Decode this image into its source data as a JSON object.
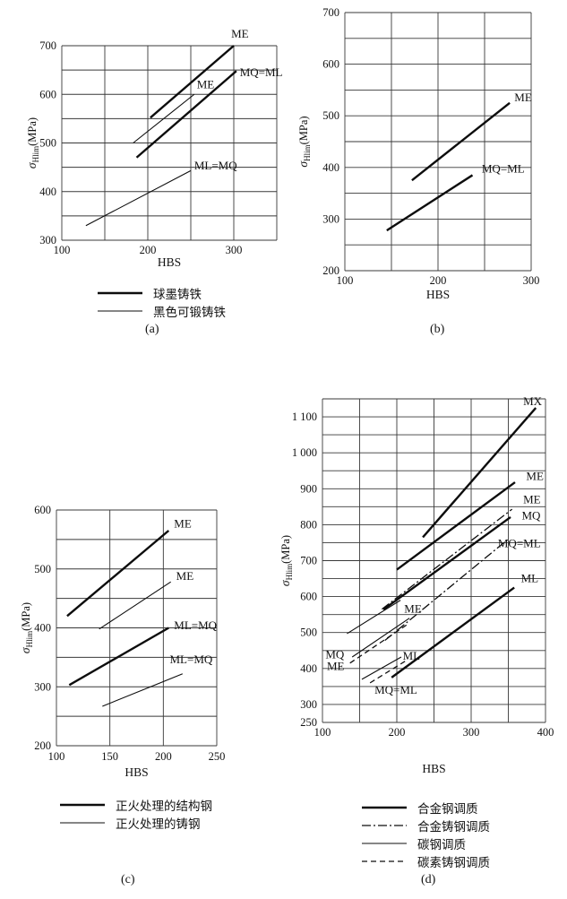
{
  "axis": {
    "x_title": "HBS",
    "y_title": {
      "sym": "σ",
      "sub": "Hlim",
      "unit": "(MPa)"
    }
  },
  "quality_grades": [
    "ME",
    "MQ",
    "ML",
    "MX"
  ],
  "line_color": "#0d0d0d",
  "chart_data": [
    {
      "id": "a",
      "type": "line",
      "caption": "(a)",
      "xlabel": "HBS",
      "ylabel": "σHlim(MPa)",
      "xlim": [
        100,
        350
      ],
      "ylim": [
        300,
        700
      ],
      "grid_step": 50,
      "grid": true,
      "xticks": [
        100,
        200,
        300
      ],
      "yticks": [
        {
          "v": 700,
          "l": "700"
        },
        {
          "v": 600,
          "l": "600"
        },
        {
          "v": 500,
          "l": "500"
        },
        {
          "v": 400,
          "l": "400"
        },
        {
          "v": 300,
          "l": "300"
        }
      ],
      "series": [
        {
          "name": "ME",
          "material": "球墨铸铁",
          "style": "thick",
          "points": [
            [
              203,
              552
            ],
            [
              300,
              700
            ]
          ],
          "label": {
            "t": "ME",
            "x": 297,
            "y": 717
          }
        },
        {
          "name": "MQ=ML",
          "material": "球墨铸铁",
          "style": "thick",
          "points": [
            [
              187,
              470
            ],
            [
              303,
              648
            ]
          ],
          "label": {
            "t": "MQ=ML",
            "x": 307,
            "y": 637
          }
        },
        {
          "name": "ME",
          "material": "黑色可锻铸铁",
          "style": "thin",
          "points": [
            [
              183,
              500
            ],
            [
              254,
              600
            ]
          ],
          "label": {
            "t": "ME",
            "x": 257,
            "y": 612
          }
        },
        {
          "name": "ML=MQ",
          "material": "黑色可锻铸铁",
          "style": "thin",
          "points": [
            [
              128,
              330
            ],
            [
              250,
              443
            ]
          ],
          "label": {
            "t": "ML=MQ",
            "x": 254,
            "y": 446
          }
        }
      ],
      "legend": [
        {
          "style": "thick",
          "label": "球墨铸铁"
        },
        {
          "style": "thin",
          "label": "黑色可锻铸铁"
        }
      ]
    },
    {
      "id": "b",
      "type": "line",
      "caption": "(b)",
      "xlabel": "HBS",
      "ylabel": "σHlim(MPa)",
      "xlim": [
        100,
        300
      ],
      "ylim": [
        200,
        700
      ],
      "grid_step": 50,
      "grid": true,
      "xticks": [
        100,
        200,
        300
      ],
      "yticks": [
        {
          "v": 700,
          "l": "700"
        },
        {
          "v": 600,
          "l": "600"
        },
        {
          "v": 500,
          "l": "500"
        },
        {
          "v": 400,
          "l": "400"
        },
        {
          "v": 300,
          "l": "300"
        },
        {
          "v": 200,
          "l": "200"
        }
      ],
      "series": [
        {
          "name": "ME",
          "style": "thick",
          "points": [
            [
              172,
              375
            ],
            [
              277,
              525
            ]
          ],
          "label": {
            "t": "ME",
            "x": 282,
            "y": 528
          }
        },
        {
          "name": "MQ=ML",
          "style": "thick",
          "points": [
            [
              145,
              278
            ],
            [
              237,
              385
            ]
          ],
          "label": {
            "t": "MQ=ML",
            "x": 247,
            "y": 390
          }
        }
      ],
      "legend": []
    },
    {
      "id": "c",
      "type": "line",
      "caption": "(c)",
      "xlabel": "HBS",
      "ylabel": "σHlim(MPa)",
      "xlim": [
        100,
        250
      ],
      "ylim": [
        200,
        600
      ],
      "grid_step": 50,
      "grid": true,
      "xticks": [
        100,
        150,
        200,
        250
      ],
      "yticks": [
        {
          "v": 600,
          "l": "600"
        },
        {
          "v": 500,
          "l": "500"
        },
        {
          "v": 400,
          "l": "400"
        },
        {
          "v": 300,
          "l": "300"
        },
        {
          "v": 200,
          "l": "200"
        }
      ],
      "series": [
        {
          "name": "ME",
          "material": "正火处理的结构钢",
          "style": "thick",
          "points": [
            [
              110,
              420
            ],
            [
              205,
              565
            ]
          ],
          "label": {
            "t": "ME",
            "x": 210,
            "y": 570
          }
        },
        {
          "name": "ML=MQ",
          "material": "正火处理的结构钢",
          "style": "thick",
          "points": [
            [
              112,
              303
            ],
            [
              205,
              400
            ]
          ],
          "label": {
            "t": "ML=MQ",
            "x": 210,
            "y": 398
          }
        },
        {
          "name": "ME",
          "material": "正火处理的铸钢",
          "style": "thin",
          "points": [
            [
              140,
              398
            ],
            [
              207,
              478
            ]
          ],
          "label": {
            "t": "ME",
            "x": 212,
            "y": 481
          }
        },
        {
          "name": "ML=MQ",
          "material": "正火处理的铸钢",
          "style": "thin",
          "points": [
            [
              143,
              267
            ],
            [
              218,
              322
            ]
          ],
          "label": {
            "t": "ML=MQ",
            "x": 206,
            "y": 340
          }
        }
      ],
      "legend": [
        {
          "style": "thick",
          "label": "正火处理的结构钢"
        },
        {
          "style": "thin",
          "label": "正火处理的铸钢"
        }
      ]
    },
    {
      "id": "d",
      "type": "line",
      "caption": "(d)",
      "xlabel": "HBS",
      "ylabel": "σHlim(MPa)",
      "xlim": [
        100,
        400
      ],
      "ylim": [
        250,
        1150
      ],
      "grid_step": 50,
      "grid": true,
      "xticks": [
        100,
        200,
        300,
        400
      ],
      "yticks": [
        {
          "v": 1100,
          "l": "1 100"
        },
        {
          "v": 1000,
          "l": "1 000"
        },
        {
          "v": 900,
          "l": "900"
        },
        {
          "v": 800,
          "l": "800"
        },
        {
          "v": 700,
          "l": "700"
        },
        {
          "v": 600,
          "l": "600"
        },
        {
          "v": 500,
          "l": "500"
        },
        {
          "v": 400,
          "l": "400"
        },
        {
          "v": 300,
          "l": "300"
        },
        {
          "v": 250,
          "l": "250"
        }
      ],
      "series": [
        {
          "name": "MX",
          "material": "合金钢调质",
          "style": "thick",
          "points": [
            [
              235,
              765
            ],
            [
              387,
              1125
            ]
          ],
          "label": {
            "t": "MX",
            "x": 370,
            "y": 1133
          }
        },
        {
          "name": "ME",
          "material": "合金钢调质",
          "style": "thick",
          "points": [
            [
              200,
              675
            ],
            [
              359,
              918
            ]
          ],
          "label": {
            "t": "ME",
            "x": 374,
            "y": 925
          }
        },
        {
          "name": "MQ",
          "material": "合金钢调质",
          "style": "thick",
          "points": [
            [
              182,
              564
            ],
            [
              353,
              821
            ]
          ],
          "label": {
            "t": "MQ",
            "x": 368,
            "y": 815
          }
        },
        {
          "name": "ML",
          "material": "合金钢调质",
          "style": "thick",
          "points": [
            [
              193,
              375
            ],
            [
              358,
              625
            ]
          ],
          "label": {
            "t": "ML",
            "x": 367,
            "y": 640
          }
        },
        {
          "name": "ME",
          "material": "合金铸钢调质",
          "style": "dashdot",
          "points": [
            [
              180,
              565
            ],
            [
              355,
              843
            ]
          ],
          "label": {
            "t": "ME",
            "x": 370,
            "y": 860
          }
        },
        {
          "name": "MQ=ML",
          "material": "合金铸钢调质",
          "style": "dashdot",
          "points": [
            [
              184,
              478
            ],
            [
              350,
              760
            ]
          ],
          "label": {
            "t": "MQ=ML",
            "x": 336,
            "y": 737
          }
        },
        {
          "name": "ME",
          "material": "碳钢调质",
          "style": "thin",
          "points": [
            [
              133,
              497
            ],
            [
              205,
              590
            ]
          ],
          "label": {
            "t": "ME",
            "x": 210,
            "y": 556
          }
        },
        {
          "name": "MQ",
          "material": "碳钢调质",
          "style": "thin",
          "points": [
            [
              140,
              432
            ],
            [
              217,
              540
            ]
          ],
          "label": {
            "t": "MQ",
            "x": 104,
            "y": 428
          }
        },
        {
          "name": "ML",
          "material": "碳钢调质",
          "style": "thin",
          "points": [
            [
              153,
              370
            ],
            [
              206,
              432
            ]
          ],
          "label": {
            "t": "ML",
            "x": 208,
            "y": 424
          }
        },
        {
          "name": "ME",
          "material": "碳素铸钢调质",
          "style": "dashed",
          "points": [
            [
              137,
              415
            ],
            [
              216,
              525
            ]
          ],
          "label": {
            "t": "ME",
            "x": 106,
            "y": 396
          }
        },
        {
          "name": "MQ=ML",
          "material": "碳素铸钢调质",
          "style": "dashed",
          "points": [
            [
              164,
              360
            ],
            [
              211,
              420
            ]
          ],
          "label": {
            "t": "MQ=ML",
            "x": 170,
            "y": 330
          }
        }
      ],
      "legend": [
        {
          "style": "thick",
          "label": "合金钢调质"
        },
        {
          "style": "dashdot",
          "label": "合金铸钢调质"
        },
        {
          "style": "thin",
          "label": "碳钢调质"
        },
        {
          "style": "dashed",
          "label": "碳素铸钢调质"
        }
      ]
    }
  ]
}
